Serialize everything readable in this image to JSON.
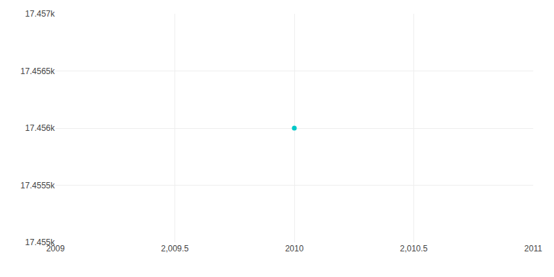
{
  "chart_data": {
    "type": "scatter",
    "x": [
      2010
    ],
    "values": [
      17456
    ],
    "color": "#00c8c8",
    "xlim": [
      2009,
      2011
    ],
    "xticks": [
      2009,
      {
        "value": 2009.5,
        "label": "2,009.5"
      },
      2010,
      {
        "value": 2010.5,
        "label": "2,010.5"
      },
      2011
    ],
    "ylim": [
      17455,
      17457
    ],
    "yticks": [
      {
        "value": 17455,
        "label": "17.455k"
      },
      {
        "value": 17455.5,
        "label": "17.4555k"
      },
      {
        "value": 17456,
        "label": "17.456k"
      },
      {
        "value": 17456.5,
        "label": "17.4565k"
      },
      {
        "value": 17457,
        "label": "17.457k"
      }
    ],
    "grid": true
  }
}
